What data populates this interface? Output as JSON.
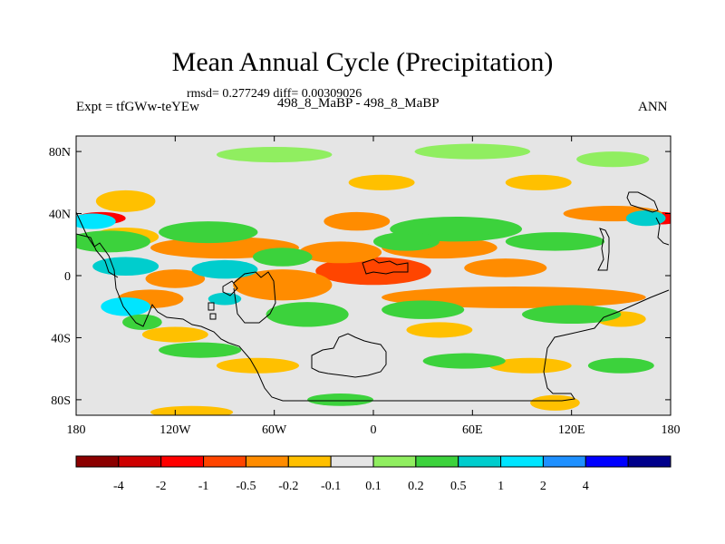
{
  "chart_data": {
    "type": "heatmap",
    "title": "Mean Annual Cycle (Precipitation)",
    "stats_text": "rmsd= 0.277249 diff= 0.00309026",
    "experiment_label": "Expt = tfGWw-teYEw",
    "case_label": "498_8_MaBP - 498_8_MaBP",
    "season_label": "ANN",
    "x_ticks": [
      "180",
      "120W",
      "60W",
      "0",
      "60E",
      "120E",
      "180"
    ],
    "x_range": [
      -180,
      180
    ],
    "y_ticks": [
      "80N",
      "40N",
      "0",
      "40S",
      "80S"
    ],
    "y_range": [
      -90,
      90
    ],
    "colorbar": {
      "colors": [
        "#8b0000",
        "#cd0000",
        "#ff0000",
        "#ff4500",
        "#ff8c00",
        "#ffc000",
        "#e5e5e5",
        "#90ee60",
        "#3cd23c",
        "#00cdcd",
        "#00e5ff",
        "#1e90ff",
        "#0000ff",
        "#00008b"
      ],
      "labels": [
        "-4",
        "-2",
        "-1",
        "-0.5",
        "-0.2",
        "-0.1",
        "0.1",
        "0.2",
        "0.5",
        "1",
        "2",
        "4"
      ]
    },
    "background_color": "#e5e5e5",
    "anomaly_regions": [
      {
        "lon": -90,
        "lat": 18,
        "rlon": 45,
        "rlat": 7,
        "value": -0.35
      },
      {
        "lon": 0,
        "lat": 3,
        "rlon": 35,
        "rlat": 9,
        "value": -0.6
      },
      {
        "lon": 85,
        "lat": -14,
        "rlon": 80,
        "rlat": 7,
        "value": -0.35
      },
      {
        "lon": -55,
        "lat": -6,
        "rlon": 30,
        "rlat": 10,
        "value": -0.35
      },
      {
        "lon": -20,
        "lat": 15,
        "rlon": 25,
        "rlat": 7,
        "value": -0.25
      },
      {
        "lon": 40,
        "lat": 18,
        "rlon": 35,
        "rlat": 7,
        "value": -0.3
      },
      {
        "lon": 80,
        "lat": 5,
        "rlon": 25,
        "rlat": 6,
        "value": -0.25
      },
      {
        "lon": -165,
        "lat": 37,
        "rlon": 15,
        "rlat": 4,
        "value": -1.5
      },
      {
        "lon": 175,
        "lat": 37,
        "rlon": 10,
        "rlat": 4,
        "value": -1.5
      },
      {
        "lon": -135,
        "lat": -15,
        "rlon": 20,
        "rlat": 6,
        "value": -0.5
      },
      {
        "lon": -120,
        "lat": -2,
        "rlon": 18,
        "rlat": 6,
        "value": -0.4
      },
      {
        "lon": -150,
        "lat": 25,
        "rlon": 20,
        "rlat": 6,
        "value": -0.2
      },
      {
        "lon": -150,
        "lat": 48,
        "rlon": 18,
        "rlat": 7,
        "value": -0.15
      },
      {
        "lon": 5,
        "lat": 60,
        "rlon": 20,
        "rlat": 5,
        "value": -0.15
      },
      {
        "lon": 145,
        "lat": 40,
        "rlon": 30,
        "rlat": 5,
        "value": -0.35
      },
      {
        "lon": -10,
        "lat": 35,
        "rlon": 20,
        "rlat": 6,
        "value": -0.4
      },
      {
        "lon": 100,
        "lat": 60,
        "rlon": 20,
        "rlat": 5,
        "value": -0.15
      },
      {
        "lon": -120,
        "lat": -38,
        "rlon": 20,
        "rlat": 5,
        "value": -0.15
      },
      {
        "lon": -70,
        "lat": -58,
        "rlon": 25,
        "rlat": 5,
        "value": -0.15
      },
      {
        "lon": 95,
        "lat": -58,
        "rlon": 25,
        "rlat": 5,
        "value": -0.15
      },
      {
        "lon": 110,
        "lat": -82,
        "rlon": 15,
        "rlat": 5,
        "value": -0.2
      },
      {
        "lon": -110,
        "lat": -88,
        "rlon": 25,
        "rlat": 4,
        "value": -0.15
      },
      {
        "lon": 40,
        "lat": -35,
        "rlon": 20,
        "rlat": 5,
        "value": -0.15
      },
      {
        "lon": 150,
        "lat": -28,
        "rlon": 15,
        "rlat": 5,
        "value": -0.15
      },
      {
        "lon": -60,
        "lat": 78,
        "rlon": 35,
        "rlat": 5,
        "value": 0.15
      },
      {
        "lon": 60,
        "lat": 80,
        "rlon": 35,
        "rlat": 5,
        "value": 0.15
      },
      {
        "lon": 145,
        "lat": 75,
        "rlon": 22,
        "rlat": 5,
        "value": 0.15
      },
      {
        "lon": -170,
        "lat": 35,
        "rlon": 14,
        "rlat": 5,
        "value": 1.2
      },
      {
        "lon": -160,
        "lat": 22,
        "rlon": 25,
        "rlat": 7,
        "value": 0.25
      },
      {
        "lon": -100,
        "lat": 28,
        "rlon": 30,
        "rlat": 7,
        "value": 0.2
      },
      {
        "lon": 50,
        "lat": 30,
        "rlon": 40,
        "rlat": 8,
        "value": 0.25
      },
      {
        "lon": 110,
        "lat": 22,
        "rlon": 30,
        "rlat": 6,
        "value": 0.3
      },
      {
        "lon": -150,
        "lat": 6,
        "rlon": 20,
        "rlat": 6,
        "value": 0.8
      },
      {
        "lon": -90,
        "lat": 4,
        "rlon": 20,
        "rlat": 6,
        "value": 0.5
      },
      {
        "lon": -55,
        "lat": 12,
        "rlon": 18,
        "rlat": 6,
        "value": 0.3
      },
      {
        "lon": 20,
        "lat": 22,
        "rlon": 20,
        "rlat": 6,
        "value": 0.25
      },
      {
        "lon": -150,
        "lat": -20,
        "rlon": 15,
        "rlat": 6,
        "value": 1.2
      },
      {
        "lon": -140,
        "lat": -30,
        "rlon": 12,
        "rlat": 5,
        "value": 0.3
      },
      {
        "lon": -40,
        "lat": -25,
        "rlon": 25,
        "rlat": 8,
        "value": 0.25
      },
      {
        "lon": 30,
        "lat": -22,
        "rlon": 25,
        "rlat": 6,
        "value": 0.2
      },
      {
        "lon": 120,
        "lat": -25,
        "rlon": 30,
        "rlat": 6,
        "value": 0.2
      },
      {
        "lon": -105,
        "lat": -48,
        "rlon": 25,
        "rlat": 5,
        "value": 0.2
      },
      {
        "lon": 55,
        "lat": -55,
        "rlon": 25,
        "rlat": 5,
        "value": 0.2
      },
      {
        "lon": 150,
        "lat": -58,
        "rlon": 20,
        "rlat": 5,
        "value": 0.2
      },
      {
        "lon": -20,
        "lat": -80,
        "rlon": 20,
        "rlat": 4,
        "value": 0.2
      },
      {
        "lon": 165,
        "lat": 37,
        "rlon": 12,
        "rlat": 5,
        "value": 0.5
      },
      {
        "lon": -90,
        "lat": -15,
        "rlon": 10,
        "rlat": 4,
        "value": 0.8
      }
    ]
  }
}
